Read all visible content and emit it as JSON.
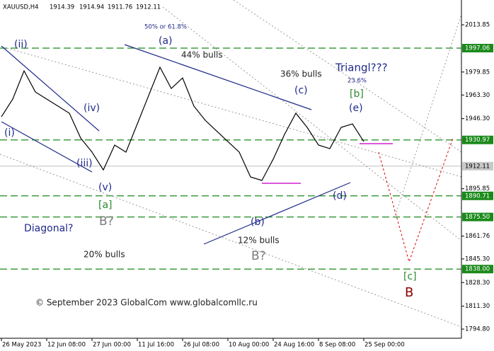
{
  "chart_data": {
    "type": "line",
    "title": "XAUUSD,H4",
    "ohlc": [
      1914.39,
      1914.94,
      1911.76,
      1912.11
    ],
    "categories": [
      "26 May 2023",
      null,
      null,
      null,
      "12 Jun 08:00",
      null,
      null,
      null,
      "27 Jun 00:00",
      null,
      null,
      null,
      "11 Jul 16:00",
      null,
      null,
      null,
      "26 Jul 08:00",
      null,
      null,
      null,
      "10 Aug 00:00",
      null,
      null,
      null,
      "24 Aug 16:00",
      null,
      null,
      null,
      "8 Sep 08:00",
      null,
      null,
      null,
      "25 Sep 00:00"
    ],
    "values": [
      1947.6,
      1960.4,
      1980.7,
      1965.5,
      1960.4,
      1955.3,
      1950.2,
      1932.3,
      1922.2,
      1909.4,
      1927.3,
      1922.2,
      1942.5,
      1962.9,
      1983.3,
      1968.0,
      1975.6,
      1955.3,
      1945.1,
      1937.4,
      1929.8,
      1922.2,
      1904.3,
      1901.8,
      1917.1,
      1934.9,
      1950.2,
      1940.0,
      1927.3,
      1924.7,
      1940.0,
      1942.5,
      1929.8
    ],
    "color": "#000000",
    "ylim": [
      1788.2,
      2031.7
    ],
    "yticks": [
      2013.85,
      1979.85,
      {
        "value": 1963.3,
        "label": "1963.30"
      },
      {
        "value": 1946.3,
        "label": "1946.30"
      },
      1895.85,
      1861.76,
      {
        "value": 1845.3,
        "label": "1845.30"
      },
      {
        "value": 1828.3,
        "label": "1828.30"
      },
      {
        "value": 1811.3,
        "label": "1811.30"
      },
      {
        "value": 1794.8,
        "label": "1794.80"
      }
    ],
    "levels": [
      1997.06,
      1930.97,
      1890.71,
      {
        "value": 1875.5,
        "label": "1875.50"
      },
      {
        "value": 1838,
        "label": "1838.00"
      }
    ],
    "level_color": "#1b8a1b",
    "current": 1912.11,
    "annotations": [
      "(ii)",
      "(i)",
      "(iii)",
      "(iv)",
      "(v)",
      "[a]",
      "B?",
      "20% bulls",
      "Diagonal?",
      "50% or 61.8%",
      "(a)",
      "44% bulls",
      "(b)",
      "12% bulls",
      "B?",
      "36% bulls",
      "(c)",
      "Triangl???",
      "23.6%",
      "[b]",
      "(e)",
      "(d)",
      "[c]",
      "B",
      "© September 2023 GlobalCom www.globalcomllc.ru"
    ]
  }
}
